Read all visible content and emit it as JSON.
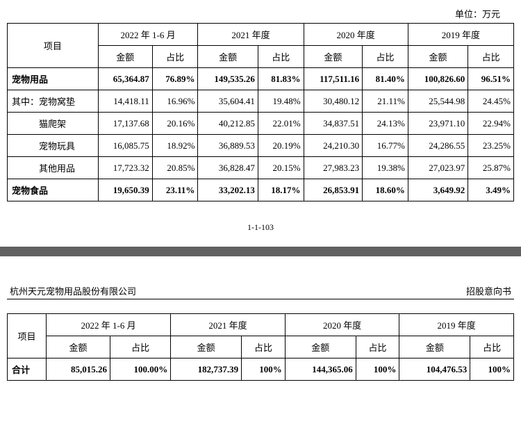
{
  "unit_label": "单位：万元",
  "periods": [
    "2022 年 1-6 月",
    "2021 年度",
    "2020 年度",
    "2019 年度"
  ],
  "subheaders": [
    "金额",
    "占比"
  ],
  "col_project": "项目",
  "table1": {
    "rows": [
      {
        "label": "宠物用品",
        "bold": true,
        "cells": [
          "65,364.87",
          "76.89%",
          "149,535.26",
          "81.83%",
          "117,511.16",
          "81.40%",
          "100,826.60",
          "96.51%"
        ]
      },
      {
        "label": "其中：宠物窝垫",
        "bold": false,
        "cells": [
          "14,418.11",
          "16.96%",
          "35,604.41",
          "19.48%",
          "30,480.12",
          "21.11%",
          "25,544.98",
          "24.45%"
        ]
      },
      {
        "label": "　　　猫爬架",
        "bold": false,
        "cells": [
          "17,137.68",
          "20.16%",
          "40,212.85",
          "22.01%",
          "34,837.51",
          "24.13%",
          "23,971.10",
          "22.94%"
        ]
      },
      {
        "label": "　　　宠物玩具",
        "bold": false,
        "cells": [
          "16,085.75",
          "18.92%",
          "36,889.53",
          "20.19%",
          "24,210.30",
          "16.77%",
          "24,286.55",
          "23.25%"
        ]
      },
      {
        "label": "　　　其他用品",
        "bold": false,
        "cells": [
          "17,723.32",
          "20.85%",
          "36,828.47",
          "20.15%",
          "27,983.23",
          "19.38%",
          "27,023.97",
          "25.87%"
        ]
      },
      {
        "label": "宠物食品",
        "bold": true,
        "cells": [
          "19,650.39",
          "23.11%",
          "33,202.13",
          "18.17%",
          "26,853.91",
          "18.60%",
          "3,649.92",
          "3.49%"
        ]
      }
    ]
  },
  "page_number": "1-1-103",
  "company_name": "杭州天元宠物用品股份有限公司",
  "doc_type": "招股意向书",
  "table2": {
    "rows": [
      {
        "label": "合计",
        "bold": true,
        "cells": [
          "85,015.26",
          "100.00%",
          "182,737.39",
          "100%",
          "144,365.06",
          "100%",
          "104,476.53",
          "100%"
        ]
      }
    ]
  }
}
